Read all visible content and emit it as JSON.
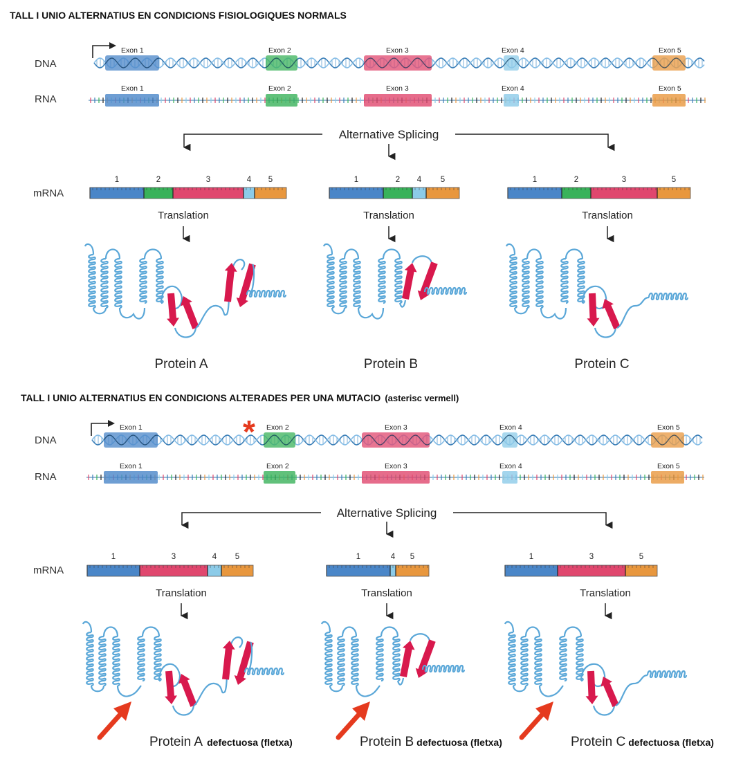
{
  "colors": {
    "exon1": "#4a86c8",
    "exon2": "#39b25a",
    "exon3": "#e0476e",
    "exon4": "#8ccbe8",
    "exon5": "#e8973e",
    "helix": "#5aa7d8",
    "sheet": "#d8194d",
    "mutation": "#e53a1e"
  },
  "panels": [
    {
      "heading": "TALL I UNIO ALTERNATIUS EN CONDICIONS FISIOLOGIQUES NORMALS",
      "heading_note": "",
      "dna_label": "DNA",
      "rna_label": "RNA",
      "mrna_label": "mRNA",
      "exons": [
        "Exon  1",
        "Exon 2",
        "Exon  3",
        "Exon 4",
        "Exon 5"
      ],
      "splicing_label": "Alternative Splicing",
      "translation_label": "Translation",
      "isoforms": [
        {
          "name": "Protein A",
          "defect": "",
          "exon_numbers": [
            "1",
            "2",
            "3",
            "4",
            "5"
          ]
        },
        {
          "name": "Protein B",
          "defect": "",
          "exon_numbers": [
            "1",
            "2",
            "4",
            "5"
          ]
        },
        {
          "name": "Protein C",
          "defect": "",
          "exon_numbers": [
            "1",
            "2",
            "3",
            "5"
          ]
        }
      ]
    },
    {
      "heading": "TALL I UNIO ALTERNATIUS EN CONDICIONS ALTERADES PER UNA MUTACIO",
      "heading_note": "(asterisc vermell)",
      "mutation_mark": "*",
      "dna_label": "DNA",
      "rna_label": "RNA",
      "mrna_label": "mRNA",
      "exons": [
        "Exon  1",
        "Exon 2",
        "Exon  3",
        "Exon 4",
        "Exon 5"
      ],
      "splicing_label": "Alternative Splicing",
      "translation_label": "Translation",
      "isoforms": [
        {
          "name": "Protein A",
          "defect": "defectuosa (fletxa)",
          "exon_numbers": [
            "1",
            "3",
            "4",
            "5"
          ]
        },
        {
          "name": "Protein B",
          "defect": "defectuosa (fletxa)",
          "exon_numbers": [
            "1",
            "4",
            "5"
          ]
        },
        {
          "name": "Protein C",
          "defect": "defectuosa (fletxa)",
          "exon_numbers": [
            "1",
            "3",
            "5"
          ]
        }
      ]
    }
  ]
}
